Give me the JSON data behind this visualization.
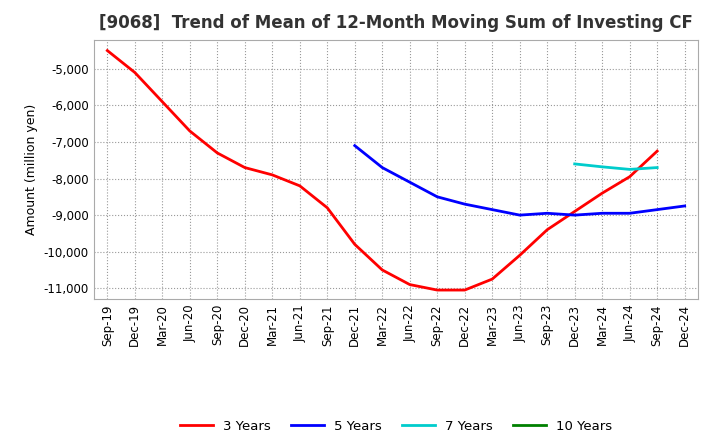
{
  "title": "[9068]  Trend of Mean of 12-Month Moving Sum of Investing CF",
  "ylabel": "Amount (million yen)",
  "background_color": "#ffffff",
  "plot_background": "#ffffff",
  "grid_color": "#aaaaaa",
  "series": {
    "3years": {
      "color": "#ff0000",
      "label": "3 Years",
      "x": [
        "Sep-19",
        "Dec-19",
        "Mar-20",
        "Jun-20",
        "Sep-20",
        "Dec-20",
        "Mar-21",
        "Jun-21",
        "Sep-21",
        "Dec-21",
        "Mar-22",
        "Jun-22",
        "Sep-22",
        "Dec-22",
        "Mar-23",
        "Jun-23",
        "Sep-23",
        "Dec-23",
        "Mar-24",
        "Jun-24",
        "Sep-24"
      ],
      "y": [
        -4500,
        -5100,
        -5900,
        -6700,
        -7300,
        -7700,
        -7900,
        -8200,
        -8800,
        -9800,
        -10500,
        -10900,
        -11050,
        -11050,
        -10750,
        -10100,
        -9400,
        -8900,
        -8400,
        -7950,
        -7250
      ]
    },
    "5years": {
      "color": "#0000ff",
      "label": "5 Years",
      "x": [
        "Dec-21",
        "Mar-22",
        "Jun-22",
        "Sep-22",
        "Dec-22",
        "Mar-23",
        "Jun-23",
        "Sep-23",
        "Dec-23",
        "Mar-24",
        "Jun-24",
        "Sep-24",
        "Dec-24"
      ],
      "y": [
        -7100,
        -7700,
        -8100,
        -8500,
        -8700,
        -8850,
        -9000,
        -8950,
        -9000,
        -8950,
        -8950,
        -8850,
        -8750
      ]
    },
    "7years": {
      "color": "#00cccc",
      "label": "7 Years",
      "x": [
        "Dec-23",
        "Mar-24",
        "Jun-24",
        "Sep-24"
      ],
      "y": [
        -7600,
        -7680,
        -7750,
        -7700
      ]
    },
    "10years": {
      "color": "#008000",
      "label": "10 Years",
      "x": [],
      "y": []
    }
  },
  "xlabels": [
    "Sep-19",
    "Dec-19",
    "Mar-20",
    "Jun-20",
    "Sep-20",
    "Dec-20",
    "Mar-21",
    "Jun-21",
    "Sep-21",
    "Dec-21",
    "Mar-22",
    "Jun-22",
    "Sep-22",
    "Dec-22",
    "Mar-23",
    "Jun-23",
    "Sep-23",
    "Dec-23",
    "Mar-24",
    "Jun-24",
    "Sep-24",
    "Dec-24"
  ],
  "ylim": [
    -11300,
    -4200
  ],
  "yticks": [
    -11000,
    -10000,
    -9000,
    -8000,
    -7000,
    -6000,
    -5000
  ],
  "title_fontsize": 12,
  "axis_fontsize": 9,
  "tick_fontsize": 8.5,
  "legend_fontsize": 9.5
}
